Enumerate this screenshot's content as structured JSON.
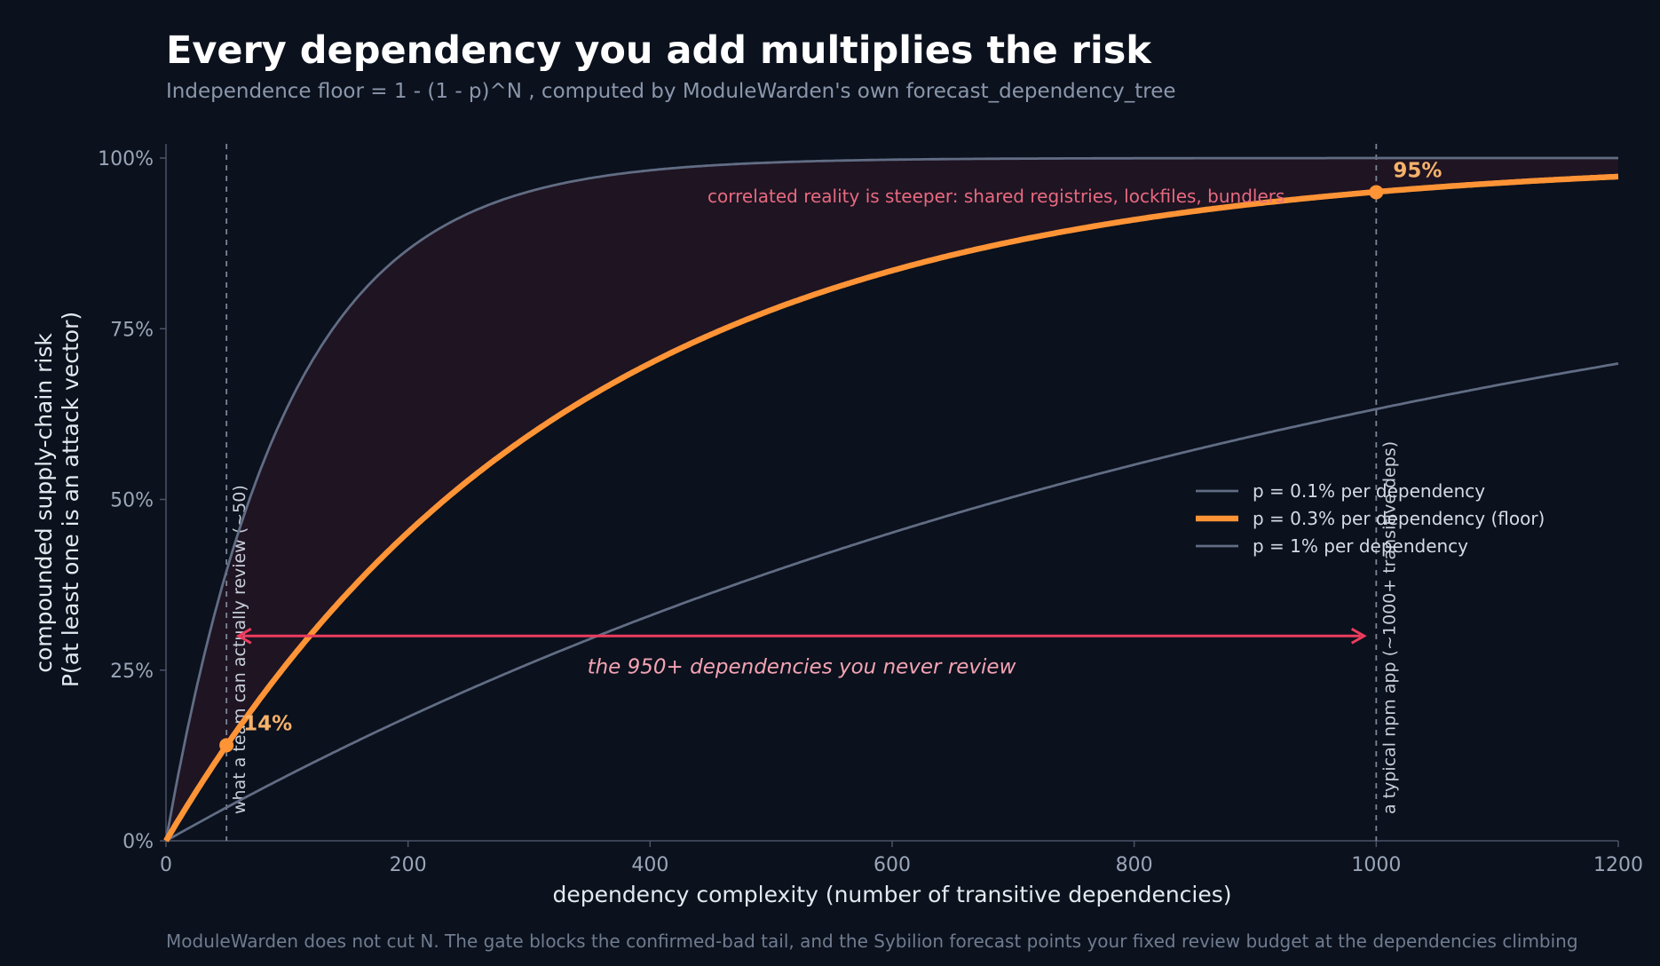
{
  "title": "Every dependency you add multiplies the risk",
  "subtitle": "Independence floor  =  1 - (1 - p)^N , computed by ModuleWarden's own forecast_dependency_tree",
  "footnote": "ModuleWarden does not cut N. The gate blocks the confirmed-bad tail, and the Sybilion forecast points your fixed review budget at the dependencies climbing",
  "colors": {
    "background": "#0b111d",
    "floor": "#ff9436",
    "other_series": "#616d84",
    "accent_red": "#ec3c5e",
    "shade": "#1f1422",
    "axis": "#4a5466",
    "guide": "#7a8596"
  },
  "chart_data": {
    "type": "line",
    "formula": "1 - (1 - p)^N",
    "xlabel": "dependency complexity  (number of transitive dependencies)",
    "ylabel_lines": [
      "compounded supply-chain risk",
      "P(at least one is an attack vector)"
    ],
    "xlim": [
      0,
      1200
    ],
    "ylim": [
      0,
      1
    ],
    "x_ticks": [
      0,
      200,
      400,
      600,
      800,
      1000,
      1200
    ],
    "x_tick_labels": [
      "0",
      "200",
      "400",
      "600",
      "800",
      "1000",
      "1200"
    ],
    "y_ticks": [
      0,
      0.25,
      0.5,
      0.75,
      1
    ],
    "y_tick_labels": [
      "0%",
      "25%",
      "50%",
      "75%",
      "100%"
    ],
    "grid": false,
    "legend_position": "right",
    "series": [
      {
        "name": "p = 0.1% per dependency",
        "p": 0.001,
        "role": "thin"
      },
      {
        "name": "p = 0.3% per dependency  (floor)",
        "p": 0.003,
        "role": "floor"
      },
      {
        "name": "p = 1% per dependency",
        "p": 0.01,
        "role": "thin"
      }
    ],
    "vertical_markers": [
      {
        "x": 50,
        "label": "what a team can actually review (~50)"
      },
      {
        "x": 1000,
        "label": "a typical npm app (~1000+ transitive deps)"
      }
    ],
    "highlight_points": [
      {
        "x": 50,
        "y": 0.14,
        "label": "14%"
      },
      {
        "x": 1000,
        "y": 0.95,
        "label": "95%"
      }
    ],
    "span_annotation": {
      "x_start": 60,
      "x_end": 990,
      "y": 0.3,
      "label": "the 950+ dependencies you never review"
    },
    "shade_note": "correlated reality is steeper: shared registries, lockfiles, bundlers"
  }
}
